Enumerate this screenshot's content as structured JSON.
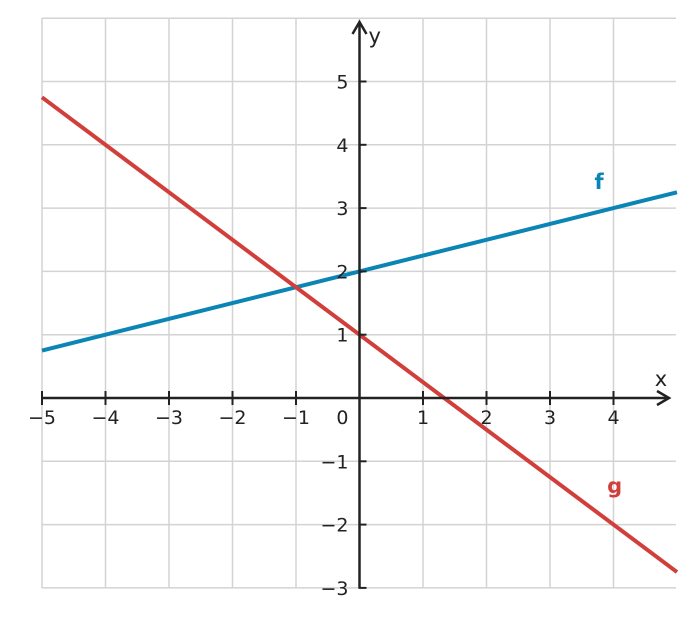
{
  "chart_data": {
    "type": "line",
    "title": "",
    "xlabel": "x",
    "ylabel": "y",
    "xlim": [
      -5,
      5
    ],
    "ylim": [
      -3,
      6
    ],
    "grid": true,
    "x_ticks": [
      {
        "value": -5,
        "label": "−5"
      },
      {
        "value": -4,
        "label": "−4"
      },
      {
        "value": -3,
        "label": "−3"
      },
      {
        "value": -2,
        "label": "−2"
      },
      {
        "value": -1,
        "label": "−1"
      },
      {
        "value": 1,
        "label": "1"
      },
      {
        "value": 2,
        "label": "2"
      },
      {
        "value": 3,
        "label": "3"
      },
      {
        "value": 4,
        "label": "4"
      }
    ],
    "y_ticks": [
      {
        "value": -3,
        "label": "−3"
      },
      {
        "value": -2,
        "label": "−2"
      },
      {
        "value": -1,
        "label": "−1"
      },
      {
        "value": 1,
        "label": "1"
      },
      {
        "value": 2,
        "label": "2"
      },
      {
        "value": 3,
        "label": "3"
      },
      {
        "value": 4,
        "label": "4"
      },
      {
        "value": 5,
        "label": "5"
      }
    ],
    "origin_label": "0",
    "series": [
      {
        "name": "f",
        "color": "#0a85b5",
        "x": [
          -5,
          5
        ],
        "y": [
          0.75,
          3.25
        ]
      },
      {
        "name": "g",
        "color": "#d13f3b",
        "x": [
          -5,
          5
        ],
        "y": [
          4.75,
          -2.75
        ]
      }
    ],
    "series_labels": [
      {
        "text": "f",
        "color": "#0a85b5",
        "x": 3.7,
        "y": 3.3
      },
      {
        "text": "g",
        "color": "#d13f3b",
        "x": 3.9,
        "y": -1.5
      }
    ]
  }
}
